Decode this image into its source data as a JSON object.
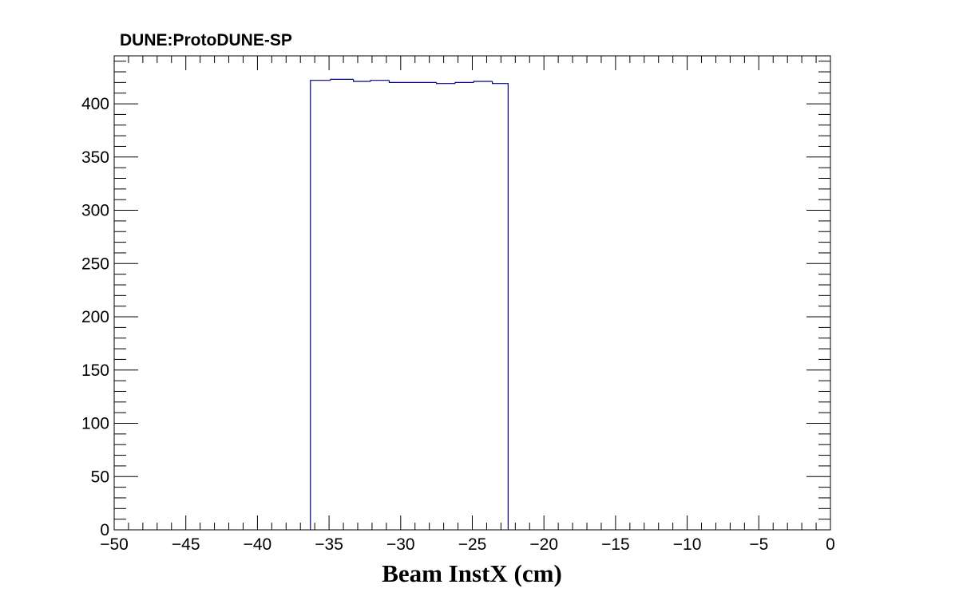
{
  "chart_data": {
    "type": "histogram",
    "title": "DUNE:ProtoDUNE-SP",
    "xlabel": "Beam InstX (cm)",
    "ylabel": "",
    "xlim": [
      -50,
      0
    ],
    "ylim": [
      0,
      445
    ],
    "x_ticks": [
      -50,
      -45,
      -40,
      -35,
      -30,
      -25,
      -20,
      -15,
      -10,
      -5,
      0
    ],
    "x_tick_labels": [
      "−50",
      "−45",
      "−40",
      "−35",
      "−30",
      "−25",
      "−20",
      "−15",
      "−10",
      "−5",
      "0"
    ],
    "y_ticks": [
      0,
      50,
      100,
      150,
      200,
      250,
      300,
      350,
      400
    ],
    "y_tick_labels": [
      "0",
      "50",
      "100",
      "150",
      "200",
      "250",
      "300",
      "350",
      "400"
    ],
    "bins": [
      {
        "x0": -36.3,
        "x1": -34.9,
        "y": 422
      },
      {
        "x0": -34.9,
        "x1": -33.3,
        "y": 423
      },
      {
        "x0": -33.3,
        "x1": -32.1,
        "y": 421
      },
      {
        "x0": -32.1,
        "x1": -30.8,
        "y": 422
      },
      {
        "x0": -30.8,
        "x1": -29.1,
        "y": 420
      },
      {
        "x0": -29.1,
        "x1": -27.5,
        "y": 420
      },
      {
        "x0": -27.5,
        "x1": -26.2,
        "y": 419
      },
      {
        "x0": -26.2,
        "x1": -24.9,
        "y": 420
      },
      {
        "x0": -24.9,
        "x1": -23.6,
        "y": 421
      },
      {
        "x0": -23.6,
        "x1": -22.5,
        "y": 419
      }
    ],
    "line_color": "#000080",
    "grid": false,
    "legend": "none"
  }
}
